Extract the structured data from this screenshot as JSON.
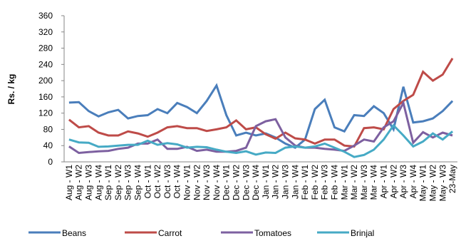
{
  "chart_data": {
    "type": "line",
    "y_label": "Rs. / kg",
    "categories": [
      "Aug - W1",
      "Aug - W2",
      "Aug - W3",
      "Aug - W4",
      "Sep - W1",
      "Sep - W2",
      "Sep - W3",
      "Sep - W4",
      "Oct - W1",
      "Oct - W2",
      "Oct - W3",
      "Oct - W4",
      "Nov - W1",
      "Nov - W2",
      "Nov - W3",
      "Nov - W4",
      "Dec - W1",
      "Dec - W2",
      "Dec - W3",
      "Dec - W4",
      "Jan - W1",
      "Jan - W2",
      "Jan - W3",
      "Jan - W4",
      "Feb - W1",
      "Feb - W2",
      "Feb - W3",
      "Feb - W4",
      "Mar - W1",
      "Mar - W2",
      "Mar - W3",
      "Mar - W4",
      "Apr - W1",
      "Apr - W2",
      "Apr - W3",
      "Apr - W4",
      "May - W1",
      "May - W2",
      "May - W3",
      "23-May"
    ],
    "series": [
      {
        "name": "Beans",
        "color": "#4a7ebb",
        "values": [
          146,
          147,
          125,
          112,
          122,
          128,
          107,
          113,
          115,
          130,
          120,
          145,
          135,
          120,
          150,
          188,
          115,
          65,
          72,
          65,
          70,
          60,
          45,
          35,
          55,
          130,
          153,
          85,
          75,
          115,
          113,
          137,
          120,
          80,
          185,
          97,
          100,
          107,
          125,
          150
        ]
      },
      {
        "name": "Carrot",
        "color": "#be4b48",
        "values": [
          104,
          85,
          88,
          72,
          65,
          65,
          75,
          70,
          62,
          72,
          85,
          88,
          83,
          83,
          76,
          80,
          85,
          102,
          80,
          85,
          68,
          57,
          72,
          58,
          55,
          45,
          55,
          55,
          40,
          38,
          83,
          85,
          80,
          130,
          150,
          165,
          222,
          200,
          215,
          255
        ]
      },
      {
        "name": "Tomatoes",
        "color": "#7d60a0",
        "values": [
          38,
          22,
          24,
          26,
          27,
          32,
          35,
          45,
          45,
          55,
          32,
          32,
          37,
          27,
          30,
          25,
          25,
          27,
          35,
          88,
          100,
          105,
          60,
          40,
          35,
          35,
          32,
          30,
          27,
          40,
          55,
          50,
          85,
          100,
          145,
          47,
          73,
          60,
          72,
          65
        ]
      },
      {
        "name": "Brinjal",
        "color": "#46aac5",
        "values": [
          55,
          48,
          47,
          37,
          38,
          40,
          42,
          42,
          52,
          42,
          46,
          43,
          35,
          37,
          36,
          30,
          25,
          22,
          26,
          18,
          23,
          22,
          35,
          38,
          35,
          38,
          45,
          35,
          25,
          12,
          17,
          30,
          55,
          90,
          65,
          38,
          50,
          70,
          55,
          75
        ]
      }
    ],
    "ylim": [
      0,
      360
    ],
    "yticks": [
      0,
      40,
      80,
      120,
      160,
      200,
      240,
      280,
      320,
      360
    ],
    "legend": "bottom"
  }
}
